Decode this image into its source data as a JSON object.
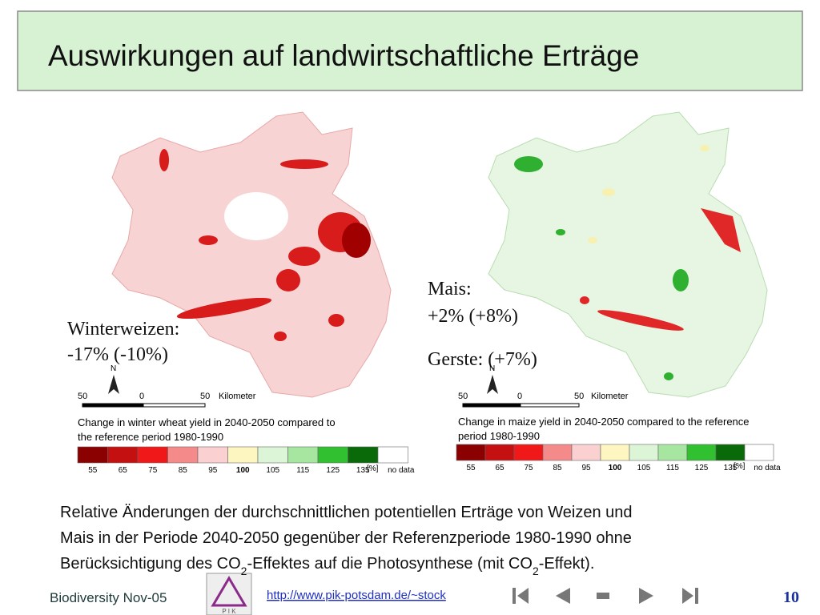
{
  "title": "Auswirkungen auf landwirtschaftliche Erträge",
  "maps": [
    {
      "annotation": [
        "Winterweizen:",
        "-17% (-10%)"
      ],
      "scale": {
        "north": "N",
        "labels": [
          "50",
          "0",
          "50"
        ],
        "unit": "Kilometer"
      },
      "caption": [
        "Change in winter wheat yield in 2040-2050 compared to",
        "the reference period 1980-1990"
      ],
      "legend": {
        "labels": [
          "55",
          "65",
          "75",
          "85",
          "95",
          "100",
          "105",
          "115",
          "125",
          "135"
        ],
        "unit": "[%]",
        "no_data": "no data"
      }
    },
    {
      "annotation": [
        "Mais:",
        "+2% (+8%)",
        "Gerste: (+7%)"
      ],
      "scale": {
        "north": "N",
        "labels": [
          "50",
          "0",
          "50"
        ],
        "unit": "Kilometer"
      },
      "caption": [
        "Change in maize yield in 2040-2050 compared to the reference",
        "period 1980-1990"
      ],
      "legend": {
        "labels": [
          "55",
          "65",
          "75",
          "85",
          "95",
          "100",
          "105",
          "115",
          "125",
          "135"
        ],
        "unit": "[%]",
        "no_data": "no data"
      }
    }
  ],
  "body": {
    "lines": [
      [
        "Relative Änderungen der durchschnittlichen potentiellen Erträge von Weizen und"
      ],
      [
        "Mais in der Periode 2040-2050 gegenüber der Referenzperiode 1980-1990 ohne"
      ],
      [
        "Berücksichtigung des CO",
        "2",
        "-Effektes auf die Photosynthese (mit CO",
        "2",
        "-Effekt)."
      ]
    ]
  },
  "footer": {
    "left": "Biodiversity Nov-05",
    "logo": "P I K",
    "url": "http://www.pik-potsdam.de/~stock",
    "page": "10"
  }
}
